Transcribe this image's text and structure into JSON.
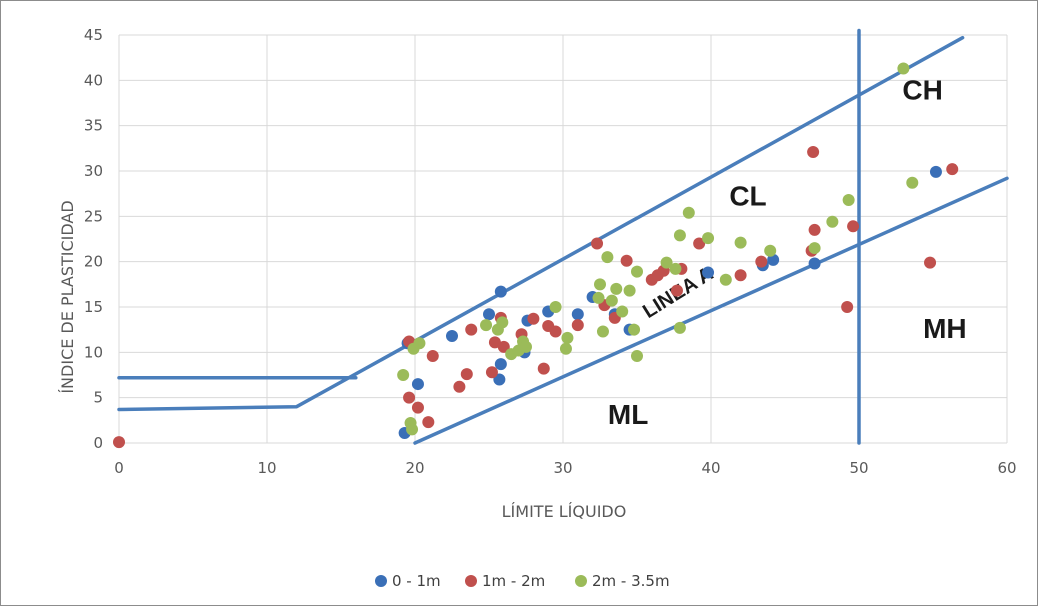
{
  "chart_data": {
    "type": "scatter",
    "xlabel": "LÍMITE LÍQUIDO",
    "ylabel": "ÍNDICE DE PLASTICIDAD",
    "xlim": [
      0,
      60
    ],
    "ylim": [
      0,
      45
    ],
    "x_ticks": [
      0,
      10,
      20,
      30,
      40,
      50,
      60
    ],
    "y_ticks": [
      0,
      5,
      10,
      15,
      20,
      25,
      30,
      35,
      40,
      45
    ],
    "grid": true,
    "legend_position": "bottom",
    "colors": {
      "line": "#4a7ebb",
      "s0": "#3a6fb7",
      "s1": "#c0504d",
      "s2": "#9bbb59"
    },
    "series": [
      {
        "name": "0 - 1m",
        "color": "#3a6fb7",
        "points": [
          [
            19.3,
            1.1
          ],
          [
            19.5,
            11.0
          ],
          [
            20.2,
            6.5
          ],
          [
            22.5,
            11.8
          ],
          [
            25.0,
            14.2
          ],
          [
            25.7,
            7.0
          ],
          [
            25.8,
            16.7
          ],
          [
            25.8,
            8.7
          ],
          [
            27.4,
            10.0
          ],
          [
            27.6,
            13.5
          ],
          [
            29.0,
            14.5
          ],
          [
            31.0,
            14.2
          ],
          [
            32.0,
            16.1
          ],
          [
            33.5,
            14.2
          ],
          [
            34.5,
            12.5
          ],
          [
            39.8,
            18.8
          ],
          [
            43.5,
            19.6
          ],
          [
            44.2,
            20.2
          ],
          [
            47.0,
            19.8
          ],
          [
            55.2,
            29.9
          ]
        ]
      },
      {
        "name": "1m - 2m",
        "color": "#c0504d",
        "points": [
          [
            0.0,
            0.1
          ],
          [
            19.6,
            11.2
          ],
          [
            19.6,
            5.0
          ],
          [
            20.2,
            3.9
          ],
          [
            20.9,
            2.3
          ],
          [
            21.2,
            9.6
          ],
          [
            23.0,
            6.2
          ],
          [
            23.5,
            7.6
          ],
          [
            23.8,
            12.5
          ],
          [
            25.2,
            7.8
          ],
          [
            25.4,
            11.1
          ],
          [
            25.8,
            13.8
          ],
          [
            26.0,
            10.6
          ],
          [
            27.2,
            12.0
          ],
          [
            28.0,
            13.7
          ],
          [
            28.7,
            8.2
          ],
          [
            29.0,
            12.9
          ],
          [
            29.5,
            12.3
          ],
          [
            31.0,
            13.0
          ],
          [
            32.3,
            22.0
          ],
          [
            32.8,
            15.2
          ],
          [
            33.5,
            13.8
          ],
          [
            34.3,
            20.1
          ],
          [
            36.0,
            18.0
          ],
          [
            36.4,
            18.5
          ],
          [
            36.8,
            19.0
          ],
          [
            37.7,
            16.8
          ],
          [
            38.0,
            19.2
          ],
          [
            39.2,
            22.0
          ],
          [
            42.0,
            18.5
          ],
          [
            43.4,
            20.0
          ],
          [
            46.8,
            21.2
          ],
          [
            46.9,
            32.1
          ],
          [
            47.0,
            23.5
          ],
          [
            49.2,
            15.0
          ],
          [
            49.6,
            23.9
          ],
          [
            54.8,
            19.9
          ],
          [
            56.3,
            30.2
          ]
        ]
      },
      {
        "name": "2m - 3.5m",
        "color": "#9bbb59",
        "points": [
          [
            19.2,
            7.5
          ],
          [
            19.7,
            2.2
          ],
          [
            19.8,
            1.5
          ],
          [
            19.9,
            10.4
          ],
          [
            20.3,
            11.0
          ],
          [
            24.8,
            13.0
          ],
          [
            25.6,
            12.5
          ],
          [
            25.9,
            13.3
          ],
          [
            26.5,
            9.8
          ],
          [
            27.0,
            10.2
          ],
          [
            27.3,
            11.2
          ],
          [
            27.5,
            10.6
          ],
          [
            29.5,
            15.0
          ],
          [
            30.2,
            10.4
          ],
          [
            30.3,
            11.6
          ],
          [
            32.4,
            16.0
          ],
          [
            32.5,
            17.5
          ],
          [
            32.7,
            12.3
          ],
          [
            33.0,
            20.5
          ],
          [
            33.3,
            15.7
          ],
          [
            33.6,
            17.0
          ],
          [
            34.0,
            14.5
          ],
          [
            34.5,
            16.8
          ],
          [
            34.8,
            12.5
          ],
          [
            35.0,
            9.6
          ],
          [
            35.0,
            18.9
          ],
          [
            37.0,
            19.9
          ],
          [
            37.6,
            19.2
          ],
          [
            37.9,
            12.7
          ],
          [
            37.9,
            22.9
          ],
          [
            38.5,
            25.4
          ],
          [
            39.8,
            22.6
          ],
          [
            41.0,
            18.0
          ],
          [
            42.0,
            22.1
          ],
          [
            44.0,
            21.2
          ],
          [
            47.0,
            21.5
          ],
          [
            48.2,
            24.4
          ],
          [
            49.3,
            26.8
          ],
          [
            53.0,
            41.3
          ],
          [
            53.6,
            28.7
          ]
        ]
      }
    ],
    "reference_lines": [
      {
        "points": [
          [
            0,
            7.2
          ],
          [
            16,
            7.2
          ]
        ]
      },
      {
        "points": [
          [
            0,
            3.7
          ],
          [
            12,
            4.0
          ],
          [
            57,
            44.7
          ]
        ]
      },
      {
        "points": [
          [
            20,
            0
          ],
          [
            60,
            29.2
          ]
        ]
      },
      {
        "points": [
          [
            50,
            0
          ],
          [
            50,
            45.5
          ]
        ]
      }
    ],
    "regions": [
      {
        "label": "CH",
        "at": [
          54.3,
          37.9
        ]
      },
      {
        "label": "CL",
        "at": [
          42.5,
          26.2
        ]
      },
      {
        "label": "MH",
        "at": [
          55.8,
          11.6
        ]
      },
      {
        "label": "ML",
        "at": [
          34.4,
          2.1
        ]
      }
    ],
    "annotation": {
      "label": "LINEA A",
      "at": [
        38.0,
        16.0
      ],
      "rotation_deg": -32
    }
  }
}
